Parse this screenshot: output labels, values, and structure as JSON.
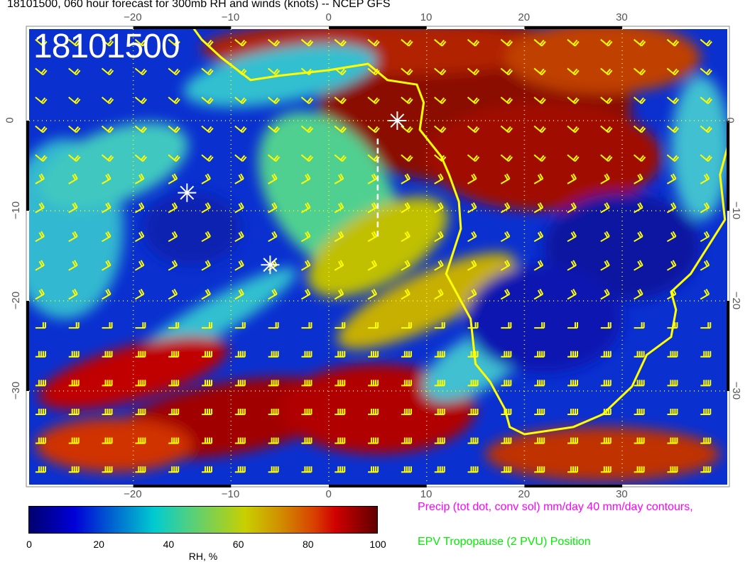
{
  "title": "18101500, 060 hour forecast for 300mb RH and winds (knots) -- NCEP GFS",
  "date_stamp": "18101500",
  "map": {
    "lon_range": [
      -31,
      41
    ],
    "lat_range": [
      -40.6,
      10.5
    ],
    "lon_ticks": [
      "−20",
      "−10",
      "0",
      "10",
      "20",
      "30"
    ],
    "lat_ticks": [
      "0",
      "−10",
      "−20",
      "−30"
    ],
    "coastline_color": "#ffff00",
    "wind_barb_color": "#ffff00",
    "precip_contour_color": "#ff00ff",
    "markers": [
      {
        "type": "asterisk",
        "lon": -14.5,
        "lat": -8
      },
      {
        "type": "asterisk",
        "lon": -6,
        "lat": -16
      },
      {
        "type": "asterisk",
        "lon": 7,
        "lat": 0
      }
    ],
    "dashed_line": {
      "lon": 5,
      "lat_from": -2,
      "lat_to": -13
    }
  },
  "colorbar": {
    "label": "RH, %",
    "ticks": [
      "0",
      "20",
      "40",
      "60",
      "80",
      "100"
    ],
    "range": [
      0,
      100
    ]
  },
  "legend": {
    "precip": "Precip (tot dot, conv sol) mm/day 40 mm/day contours,",
    "epv": "EPV Tropopause (2 PVU) Position"
  }
}
